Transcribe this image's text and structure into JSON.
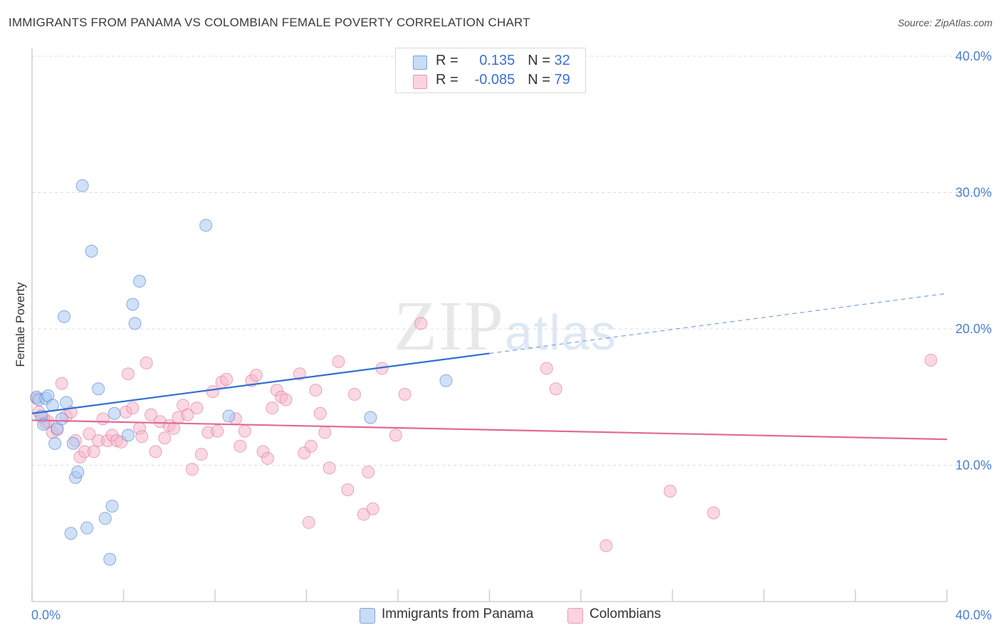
{
  "header": {
    "title": "IMMIGRANTS FROM PANAMA VS COLOMBIAN FEMALE POVERTY CORRELATION CHART",
    "source": "Source: ZipAtlas.com"
  },
  "watermark": {
    "zip": "ZIP",
    "atlas": "atlas"
  },
  "stats": [
    {
      "r_label": "R = ",
      "r_value": "0.135",
      "n_label": "N = ",
      "n_value": "32",
      "color": "#a9c8f0"
    },
    {
      "r_label": "R = ",
      "r_value": "-0.085",
      "n_label": "N = ",
      "n_value": "79",
      "color": "#f5b8cc"
    }
  ],
  "legend": [
    {
      "label": "Immigrants from Panama",
      "color": "#a9c8f0"
    },
    {
      "label": "Colombians",
      "color": "#f5b8cc"
    }
  ],
  "chart_data": {
    "type": "scatter",
    "title": "IMMIGRANTS FROM PANAMA VS COLOMBIAN FEMALE POVERTY CORRELATION CHART",
    "xlabel": "",
    "ylabel": "Female Poverty",
    "xlim": [
      0,
      40
    ],
    "ylim": [
      0,
      40
    ],
    "x_tick_labels": [
      "0.0%",
      "40.0%"
    ],
    "y_ticks": [
      10,
      20,
      30,
      40
    ],
    "y_tick_labels": [
      "10.0%",
      "20.0%",
      "30.0%",
      "40.0%"
    ],
    "grid": true,
    "series": [
      {
        "name": "Immigrants from Panama",
        "color": "#4a7fd0",
        "fill": "#a9c8f0",
        "trend": {
          "x0": 0,
          "y0": 13.8,
          "x1": 20,
          "y1": 18.2,
          "dashed_to_x": 40,
          "dashed_to_y": 22.6
        },
        "points": [
          [
            0.2,
            15.0
          ],
          [
            0.3,
            14.8
          ],
          [
            0.4,
            13.6
          ],
          [
            0.5,
            13.0
          ],
          [
            0.6,
            14.9
          ],
          [
            0.7,
            15.1
          ],
          [
            0.9,
            14.4
          ],
          [
            1.0,
            11.6
          ],
          [
            1.1,
            12.7
          ],
          [
            1.3,
            13.4
          ],
          [
            1.5,
            14.6
          ],
          [
            1.8,
            11.6
          ],
          [
            1.9,
            9.1
          ],
          [
            2.0,
            9.5
          ],
          [
            1.4,
            20.9
          ],
          [
            2.2,
            30.5
          ],
          [
            2.6,
            25.7
          ],
          [
            2.9,
            15.6
          ],
          [
            3.6,
            13.8
          ],
          [
            3.2,
            6.1
          ],
          [
            3.5,
            7.0
          ],
          [
            2.4,
            5.4
          ],
          [
            1.7,
            5.0
          ],
          [
            3.4,
            3.1
          ],
          [
            4.2,
            12.2
          ],
          [
            4.4,
            21.8
          ],
          [
            4.5,
            20.4
          ],
          [
            4.7,
            23.5
          ],
          [
            7.6,
            27.6
          ],
          [
            8.6,
            13.6
          ],
          [
            14.8,
            13.5
          ],
          [
            18.1,
            16.2
          ]
        ]
      },
      {
        "name": "Colombians",
        "color": "#e07098",
        "fill": "#f5b8cc",
        "trend": {
          "x0": 0,
          "y0": 13.3,
          "x1": 40,
          "y1": 11.9
        },
        "points": [
          [
            0.2,
            14.9
          ],
          [
            0.3,
            13.9
          ],
          [
            0.5,
            13.5
          ],
          [
            0.6,
            13.1
          ],
          [
            0.9,
            12.4
          ],
          [
            1.1,
            12.6
          ],
          [
            1.3,
            16.0
          ],
          [
            1.5,
            13.6
          ],
          [
            1.7,
            13.9
          ],
          [
            1.9,
            11.8
          ],
          [
            2.1,
            10.6
          ],
          [
            2.3,
            11.0
          ],
          [
            2.5,
            12.3
          ],
          [
            2.7,
            11.0
          ],
          [
            2.9,
            11.8
          ],
          [
            3.1,
            13.4
          ],
          [
            3.3,
            11.8
          ],
          [
            3.5,
            12.2
          ],
          [
            3.7,
            11.8
          ],
          [
            3.9,
            11.7
          ],
          [
            4.1,
            13.9
          ],
          [
            4.2,
            16.7
          ],
          [
            4.4,
            14.2
          ],
          [
            4.7,
            12.7
          ],
          [
            4.8,
            12.1
          ],
          [
            5.0,
            17.5
          ],
          [
            5.2,
            13.7
          ],
          [
            5.4,
            11.0
          ],
          [
            5.6,
            13.2
          ],
          [
            5.8,
            12.0
          ],
          [
            6.0,
            12.9
          ],
          [
            6.2,
            12.7
          ],
          [
            6.4,
            13.5
          ],
          [
            6.6,
            14.4
          ],
          [
            6.8,
            13.7
          ],
          [
            7.0,
            9.7
          ],
          [
            7.2,
            14.2
          ],
          [
            7.4,
            10.8
          ],
          [
            7.7,
            12.4
          ],
          [
            7.9,
            15.4
          ],
          [
            8.1,
            12.5
          ],
          [
            8.3,
            16.1
          ],
          [
            8.5,
            16.3
          ],
          [
            8.9,
            13.4
          ],
          [
            9.1,
            11.4
          ],
          [
            9.3,
            12.5
          ],
          [
            9.6,
            16.2
          ],
          [
            9.8,
            16.6
          ],
          [
            10.1,
            11.0
          ],
          [
            10.3,
            10.5
          ],
          [
            10.5,
            14.2
          ],
          [
            10.7,
            15.5
          ],
          [
            10.9,
            15.0
          ],
          [
            11.1,
            14.8
          ],
          [
            11.7,
            16.7
          ],
          [
            11.9,
            10.9
          ],
          [
            12.2,
            11.4
          ],
          [
            12.4,
            15.5
          ],
          [
            12.6,
            13.8
          ],
          [
            12.8,
            12.4
          ],
          [
            13.0,
            9.8
          ],
          [
            13.4,
            17.6
          ],
          [
            13.8,
            8.2
          ],
          [
            14.1,
            15.2
          ],
          [
            14.5,
            6.4
          ],
          [
            14.7,
            9.5
          ],
          [
            14.9,
            6.8
          ],
          [
            15.3,
            17.1
          ],
          [
            12.1,
            5.8
          ],
          [
            15.9,
            12.2
          ],
          [
            16.3,
            15.2
          ],
          [
            17.0,
            20.4
          ],
          [
            22.5,
            17.1
          ],
          [
            22.9,
            15.6
          ],
          [
            25.1,
            4.1
          ],
          [
            27.9,
            8.1
          ],
          [
            29.8,
            6.5
          ],
          [
            39.3,
            17.7
          ],
          [
            0.7,
            13.2
          ]
        ]
      }
    ]
  }
}
